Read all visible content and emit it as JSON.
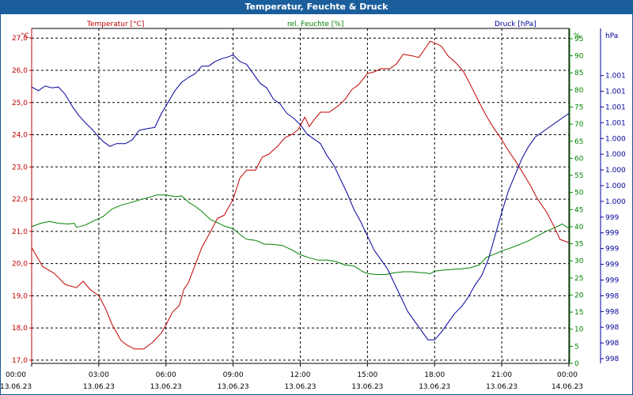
{
  "window": {
    "title": "Temperatur, Feuchte & Druck"
  },
  "chart_data": {
    "type": "line",
    "title": "Temperatur, Feuchte & Druck",
    "grid": true,
    "x": {
      "tick_times": [
        "00:00",
        "03:00",
        "06:00",
        "09:00",
        "12:00",
        "15:00",
        "18:00",
        "21:00",
        "00:00"
      ],
      "tick_dates": [
        "13.06.23",
        "13.06.23",
        "13.06.23",
        "13.06.23",
        "13.06.23",
        "13.06.23",
        "13.06.23",
        "13.06.23",
        "14.06.23"
      ],
      "range_hours": [
        0,
        24
      ]
    },
    "axes": {
      "temperature": {
        "label": "°C",
        "ticks": [
          "17,0",
          "18,0",
          "19,0",
          "20,0",
          "21,0",
          "22,0",
          "23,0",
          "24,0",
          "25,0",
          "26,0",
          "27,0"
        ],
        "range": [
          16.9,
          27.3
        ]
      },
      "humidity": {
        "label": "%",
        "ticks": [
          "0",
          "5",
          "10",
          "15",
          "20",
          "25",
          "30",
          "35",
          "40",
          "45",
          "50",
          "55",
          "60",
          "65",
          "70",
          "75",
          "80",
          "85",
          "90",
          "95"
        ],
        "range": [
          0,
          98
        ]
      },
      "pressure": {
        "label": "hPa",
        "ticks": [
          "998",
          "998",
          "998",
          "998",
          "998",
          "999",
          "999",
          "999",
          "999",
          "999",
          "1.000",
          "1.000",
          "1.000",
          "1.000",
          "1.000",
          "1.001",
          "1.001",
          "1.001",
          "1.001"
        ],
        "range": [
          997.95,
          1001.5
        ]
      }
    },
    "series": [
      {
        "name": "Temperatur [°C]",
        "axis": "temperature",
        "color": "#c00000",
        "points": [
          [
            0,
            20.5
          ],
          [
            0.5,
            19.9
          ],
          [
            1,
            19.7
          ],
          [
            1.5,
            19.35
          ],
          [
            2,
            19.25
          ],
          [
            2.3,
            19.45
          ],
          [
            2.6,
            19.2
          ],
          [
            3,
            19.0
          ],
          [
            3.3,
            18.6
          ],
          [
            3.6,
            18.1
          ],
          [
            4,
            17.6
          ],
          [
            4.3,
            17.45
          ],
          [
            4.6,
            17.35
          ],
          [
            5,
            17.35
          ],
          [
            5.4,
            17.55
          ],
          [
            5.8,
            17.85
          ],
          [
            6,
            18.1
          ],
          [
            6.3,
            18.5
          ],
          [
            6.6,
            18.7
          ],
          [
            6.8,
            19.2
          ],
          [
            7,
            19.4
          ],
          [
            7.3,
            19.95
          ],
          [
            7.6,
            20.5
          ],
          [
            8,
            21.0
          ],
          [
            8.3,
            21.4
          ],
          [
            8.6,
            21.5
          ],
          [
            9,
            22.0
          ],
          [
            9.3,
            22.65
          ],
          [
            9.6,
            22.9
          ],
          [
            10,
            22.9
          ],
          [
            10.3,
            23.3
          ],
          [
            10.6,
            23.4
          ],
          [
            11,
            23.65
          ],
          [
            11.3,
            23.9
          ],
          [
            11.6,
            24.0
          ],
          [
            11.9,
            24.15
          ],
          [
            12.2,
            24.55
          ],
          [
            12.4,
            24.25
          ],
          [
            12.6,
            24.45
          ],
          [
            12.9,
            24.7
          ],
          [
            13.3,
            24.7
          ],
          [
            13.7,
            24.9
          ],
          [
            14,
            25.1
          ],
          [
            14.3,
            25.4
          ],
          [
            14.6,
            25.55
          ],
          [
            15,
            25.9
          ],
          [
            15.3,
            25.95
          ],
          [
            15.6,
            26.05
          ],
          [
            16,
            26.05
          ],
          [
            16.3,
            26.2
          ],
          [
            16.6,
            26.5
          ],
          [
            17,
            26.45
          ],
          [
            17.3,
            26.4
          ],
          [
            17.5,
            26.6
          ],
          [
            17.8,
            26.9
          ],
          [
            18,
            26.85
          ],
          [
            18.3,
            26.75
          ],
          [
            18.6,
            26.45
          ],
          [
            19,
            26.2
          ],
          [
            19.3,
            25.95
          ],
          [
            19.6,
            25.55
          ],
          [
            20,
            25.0
          ],
          [
            20.3,
            24.6
          ],
          [
            20.6,
            24.25
          ],
          [
            21,
            23.85
          ],
          [
            21.3,
            23.5
          ],
          [
            21.6,
            23.2
          ],
          [
            22,
            22.75
          ],
          [
            22.3,
            22.4
          ],
          [
            22.6,
            22.0
          ],
          [
            23,
            21.6
          ],
          [
            23.3,
            21.2
          ],
          [
            23.6,
            20.75
          ],
          [
            24,
            20.65
          ]
        ]
      },
      {
        "name": "rel. Feuchte [%]",
        "axis": "humidity",
        "color": "#008000",
        "points": [
          [
            0,
            40
          ],
          [
            0.4,
            41
          ],
          [
            0.8,
            41.5
          ],
          [
            1.2,
            41
          ],
          [
            1.6,
            40.8
          ],
          [
            1.9,
            41
          ],
          [
            2,
            39.8
          ],
          [
            2.4,
            40.5
          ],
          [
            2.8,
            41.8
          ],
          [
            3.2,
            43
          ],
          [
            3.6,
            45.2
          ],
          [
            4,
            46.3
          ],
          [
            4.4,
            47
          ],
          [
            4.8,
            47.8
          ],
          [
            5.2,
            48.5
          ],
          [
            5.6,
            49.3
          ],
          [
            6,
            49.3
          ],
          [
            6.4,
            48.8
          ],
          [
            6.7,
            49
          ],
          [
            7,
            47.2
          ],
          [
            7.3,
            46
          ],
          [
            7.6,
            44.5
          ],
          [
            8,
            42
          ],
          [
            8.3,
            41.2
          ],
          [
            8.6,
            40.2
          ],
          [
            9,
            39.4
          ],
          [
            9.3,
            37.8
          ],
          [
            9.6,
            36.3
          ],
          [
            10,
            36
          ],
          [
            10.4,
            34.9
          ],
          [
            10.8,
            34.8
          ],
          [
            11.2,
            34.5
          ],
          [
            11.6,
            33.3
          ],
          [
            12,
            31.8
          ],
          [
            12.4,
            30.9
          ],
          [
            12.8,
            30.2
          ],
          [
            13.2,
            30.2
          ],
          [
            13.6,
            29.8
          ],
          [
            14,
            28.8
          ],
          [
            14.4,
            28.5
          ],
          [
            14.8,
            26.8
          ],
          [
            15,
            26.3
          ],
          [
            15.4,
            26
          ],
          [
            15.8,
            26
          ],
          [
            16.2,
            26.5
          ],
          [
            16.6,
            26.8
          ],
          [
            17,
            26.8
          ],
          [
            17.4,
            26.5
          ],
          [
            17.6,
            26.5
          ],
          [
            17.8,
            26.2
          ],
          [
            18,
            27
          ],
          [
            18.4,
            27.3
          ],
          [
            18.8,
            27.5
          ],
          [
            19.2,
            27.7
          ],
          [
            19.6,
            28
          ],
          [
            20,
            28.8
          ],
          [
            20.3,
            31
          ],
          [
            20.6,
            31.8
          ],
          [
            21,
            32.9
          ],
          [
            21.4,
            33.8
          ],
          [
            21.8,
            34.8
          ],
          [
            22.2,
            35.9
          ],
          [
            22.6,
            37.3
          ],
          [
            23,
            38.7
          ],
          [
            23.4,
            39.8
          ],
          [
            23.7,
            40.8
          ],
          [
            24,
            39.5
          ]
        ]
      },
      {
        "name": "Druck [hPa]",
        "axis": "pressure",
        "color": "#000099",
        "points": [
          [
            0,
            1000.88
          ],
          [
            0.3,
            1000.84
          ],
          [
            0.6,
            1000.89
          ],
          [
            0.9,
            1000.87
          ],
          [
            1.2,
            1000.88
          ],
          [
            1.5,
            1000.8
          ],
          [
            1.8,
            1000.68
          ],
          [
            2.1,
            1000.58
          ],
          [
            2.4,
            1000.5
          ],
          [
            2.7,
            1000.43
          ],
          [
            3,
            1000.35
          ],
          [
            3.2,
            1000.3
          ],
          [
            3.5,
            1000.25
          ],
          [
            3.8,
            1000.28
          ],
          [
            4.2,
            1000.28
          ],
          [
            4.5,
            1000.32
          ],
          [
            4.8,
            1000.42
          ],
          [
            5.2,
            1000.44
          ],
          [
            5.5,
            1000.45
          ],
          [
            5.8,
            1000.6
          ],
          [
            6.1,
            1000.72
          ],
          [
            6.4,
            1000.84
          ],
          [
            6.7,
            1000.93
          ],
          [
            7,
            1000.98
          ],
          [
            7.3,
            1001.02
          ],
          [
            7.6,
            1001.1
          ],
          [
            7.9,
            1001.1
          ],
          [
            8.2,
            1001.15
          ],
          [
            8.5,
            1001.18
          ],
          [
            8.8,
            1001.2
          ],
          [
            9,
            1001.22
          ],
          [
            9.3,
            1001.15
          ],
          [
            9.6,
            1001.12
          ],
          [
            9.9,
            1001.02
          ],
          [
            10.2,
            1000.92
          ],
          [
            10.5,
            1000.87
          ],
          [
            10.8,
            1000.75
          ],
          [
            11.1,
            1000.7
          ],
          [
            11.4,
            1000.6
          ],
          [
            11.7,
            1000.55
          ],
          [
            12,
            1000.48
          ],
          [
            12.3,
            1000.38
          ],
          [
            12.6,
            1000.33
          ],
          [
            12.9,
            1000.28
          ],
          [
            13.2,
            1000.15
          ],
          [
            13.5,
            1000.05
          ],
          [
            13.8,
            999.9
          ],
          [
            14.1,
            999.75
          ],
          [
            14.4,
            999.58
          ],
          [
            14.7,
            999.45
          ],
          [
            15,
            999.3
          ],
          [
            15.3,
            999.15
          ],
          [
            15.6,
            999.05
          ],
          [
            15.9,
            998.95
          ],
          [
            16.2,
            998.8
          ],
          [
            16.5,
            998.65
          ],
          [
            16.8,
            998.5
          ],
          [
            17.1,
            998.4
          ],
          [
            17.4,
            998.3
          ],
          [
            17.7,
            998.2
          ],
          [
            18,
            998.2
          ],
          [
            18.3,
            998.28
          ],
          [
            18.6,
            998.38
          ],
          [
            18.9,
            998.48
          ],
          [
            19.2,
            998.55
          ],
          [
            19.5,
            998.65
          ],
          [
            19.8,
            998.78
          ],
          [
            20.1,
            998.88
          ],
          [
            20.4,
            999.05
          ],
          [
            20.7,
            999.3
          ],
          [
            21,
            999.55
          ],
          [
            21.3,
            999.78
          ],
          [
            21.6,
            999.95
          ],
          [
            21.9,
            1000.12
          ],
          [
            22.2,
            1000.25
          ],
          [
            22.5,
            1000.35
          ],
          [
            22.8,
            1000.4
          ],
          [
            23.1,
            1000.45
          ],
          [
            23.4,
            1000.5
          ],
          [
            23.7,
            1000.55
          ],
          [
            24,
            1000.6
          ]
        ]
      }
    ],
    "legend": {
      "temperature": "Temperatur [°C]",
      "humidity": "rel. Feuchte [%]",
      "pressure": "Druck [hPa]"
    },
    "colors": {
      "titlebar": "#1b5e9c",
      "temperature": "#c00000",
      "humidity": "#008000",
      "pressure": "#000099",
      "grid": "#000000"
    }
  }
}
